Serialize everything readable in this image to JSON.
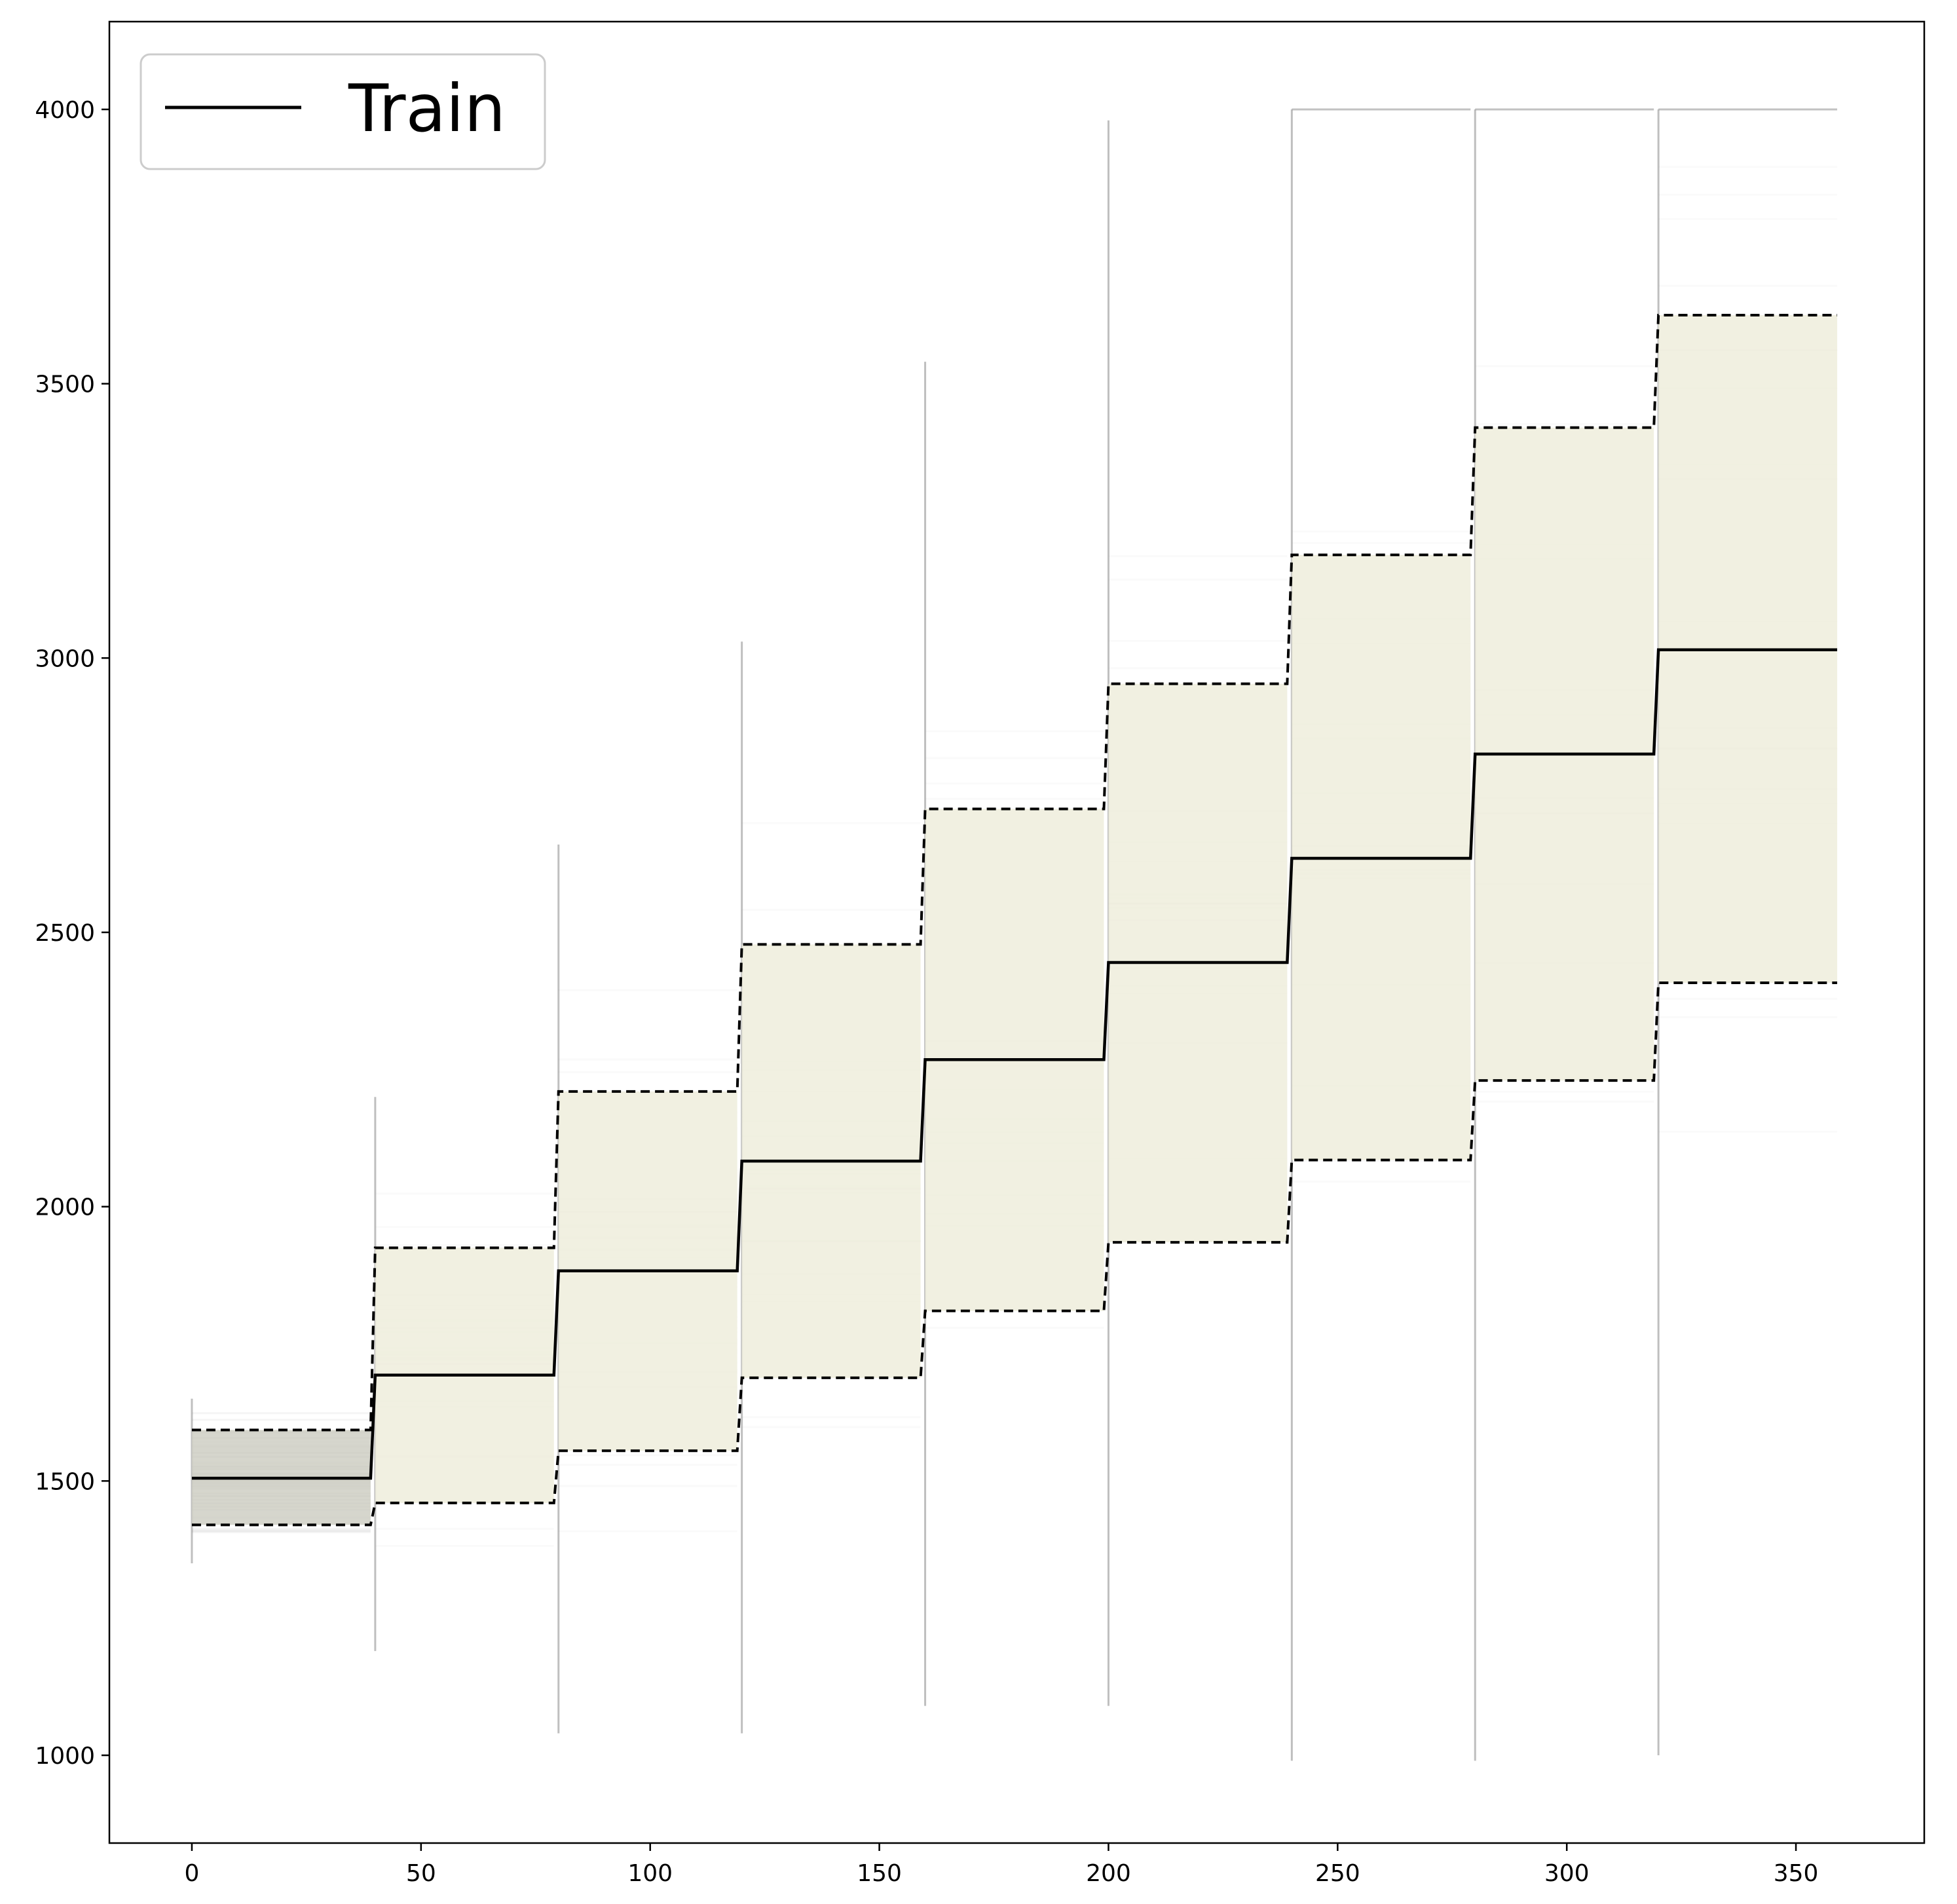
{
  "chart_data": {
    "type": "line",
    "title": "",
    "xlabel": "",
    "ylabel": "",
    "xlim": [
      -18,
      378
    ],
    "ylim": [
      840,
      4160
    ],
    "x_ticks": [
      0,
      50,
      100,
      150,
      200,
      250,
      300,
      350
    ],
    "y_ticks": [
      1000,
      1500,
      2000,
      2500,
      3000,
      3500,
      4000
    ],
    "grid": false,
    "legend": {
      "position": "top-left",
      "entries": [
        "Train"
      ]
    },
    "segments": [
      {
        "x_start": 0,
        "x_end": 39,
        "mean": 1505,
        "lower": 1420,
        "upper": 1593,
        "min": 1350,
        "max": 1650
      },
      {
        "x_start": 40,
        "x_end": 79,
        "mean": 1693,
        "lower": 1460,
        "upper": 1925,
        "min": 1190,
        "max": 2200
      },
      {
        "x_start": 80,
        "x_end": 119,
        "mean": 1883,
        "lower": 1555,
        "upper": 2210,
        "min": 1040,
        "max": 2660
      },
      {
        "x_start": 120,
        "x_end": 159,
        "mean": 2083,
        "lower": 1688,
        "upper": 2478,
        "min": 1040,
        "max": 3030
      },
      {
        "x_start": 160,
        "x_end": 199,
        "mean": 2268,
        "lower": 1810,
        "upper": 2725,
        "min": 1090,
        "max": 3540
      },
      {
        "x_start": 200,
        "x_end": 239,
        "mean": 2445,
        "lower": 1935,
        "upper": 2953,
        "min": 1090,
        "max": 3980
      },
      {
        "x_start": 240,
        "x_end": 279,
        "mean": 2635,
        "lower": 2085,
        "upper": 3188,
        "min": 990,
        "max": 4000
      },
      {
        "x_start": 280,
        "x_end": 319,
        "mean": 2825,
        "lower": 2230,
        "upper": 3420,
        "min": 990,
        "max": 4000
      },
      {
        "x_start": 320,
        "x_end": 359,
        "mean": 3015,
        "lower": 2408,
        "upper": 3625,
        "min": 1000,
        "max": 4000
      }
    ],
    "series": [
      {
        "name": "Train",
        "style": "solid",
        "color": "#000000",
        "role": "mean"
      },
      {
        "style": "dashed",
        "color": "#000000",
        "role": "band-bounds"
      }
    ],
    "band_color": "#eeeddc",
    "trace_color": "#9a9a9a"
  }
}
